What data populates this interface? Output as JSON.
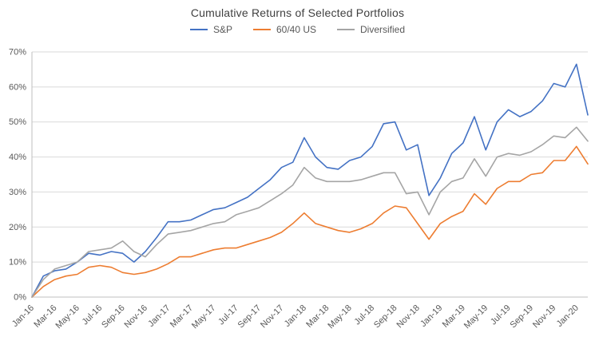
{
  "chart_data": {
    "type": "line",
    "title": "Cumulative Returns of Selected Portfolios",
    "xlabel": "",
    "ylabel": "",
    "ylim": [
      0,
      70
    ],
    "ytick_step": 10,
    "y_tick_labels": [
      "0%",
      "10%",
      "20%",
      "30%",
      "40%",
      "50%",
      "60%",
      "70%"
    ],
    "grid": true,
    "legend_position": "top",
    "x_label_every": 2,
    "x": [
      "Jan-16",
      "Feb-16",
      "Mar-16",
      "Apr-16",
      "May-16",
      "Jun-16",
      "Jul-16",
      "Aug-16",
      "Sep-16",
      "Oct-16",
      "Nov-16",
      "Dec-16",
      "Jan-17",
      "Feb-17",
      "Mar-17",
      "Apr-17",
      "May-17",
      "Jun-17",
      "Jul-17",
      "Aug-17",
      "Sep-17",
      "Oct-17",
      "Nov-17",
      "Dec-17",
      "Jan-18",
      "Feb-18",
      "Mar-18",
      "Apr-18",
      "May-18",
      "Jun-18",
      "Jul-18",
      "Aug-18",
      "Sep-18",
      "Oct-18",
      "Nov-18",
      "Dec-18",
      "Jan-19",
      "Feb-19",
      "Mar-19",
      "Apr-19",
      "May-19",
      "Jun-19",
      "Jul-19",
      "Aug-19",
      "Sep-19",
      "Oct-19",
      "Nov-19",
      "Dec-19",
      "Jan-20",
      "Feb-20"
    ],
    "series": [
      {
        "name": "S&P",
        "color": "#4472C4",
        "values": [
          0,
          6,
          7.5,
          8,
          10,
          12.5,
          12,
          13,
          12.5,
          10,
          13,
          17,
          21.5,
          21.5,
          22,
          23.5,
          25,
          25.5,
          27,
          28.5,
          31,
          33.5,
          37,
          38.5,
          45.5,
          40,
          37,
          36.5,
          39,
          40,
          43,
          49.5,
          50,
          42,
          43.5,
          29,
          34,
          41,
          44,
          51.5,
          42,
          50,
          53.5,
          51.5,
          53,
          56,
          61,
          60,
          66.5,
          52
        ]
      },
      {
        "name": "60/40 US",
        "color": "#ED7D31",
        "values": [
          0,
          3,
          5,
          6,
          6.5,
          8.5,
          9,
          8.5,
          7,
          6.5,
          7,
          8,
          9.5,
          11.5,
          11.5,
          12.5,
          13.5,
          14,
          14,
          15,
          16,
          17,
          18.5,
          21,
          24,
          21,
          20,
          19,
          18.5,
          19.5,
          21,
          24,
          26,
          25.5,
          21,
          16.5,
          21,
          23,
          24.5,
          29.5,
          26.5,
          31,
          33,
          33,
          35,
          35.5,
          39,
          39,
          43,
          38
        ]
      },
      {
        "name": "Diversified",
        "color": "#A5A5A5",
        "values": [
          0,
          5,
          8,
          9,
          10,
          13,
          13.5,
          14,
          16,
          13,
          11.5,
          15,
          18,
          18.5,
          19,
          20,
          21,
          21.5,
          23.5,
          24.5,
          25.5,
          27.5,
          29.5,
          32,
          37,
          34,
          33,
          33,
          33,
          33.5,
          34.5,
          35.5,
          35.5,
          29.5,
          30,
          23.5,
          30,
          33,
          34,
          39.5,
          34.5,
          40,
          41,
          40.5,
          41.5,
          43.5,
          46,
          45.5,
          48.5,
          44.5
        ]
      }
    ],
    "colors": {
      "grid": "#D9D9D9",
      "axis": "#BFBFBF",
      "tick_text": "#595959",
      "title_text": "#404040"
    }
  }
}
